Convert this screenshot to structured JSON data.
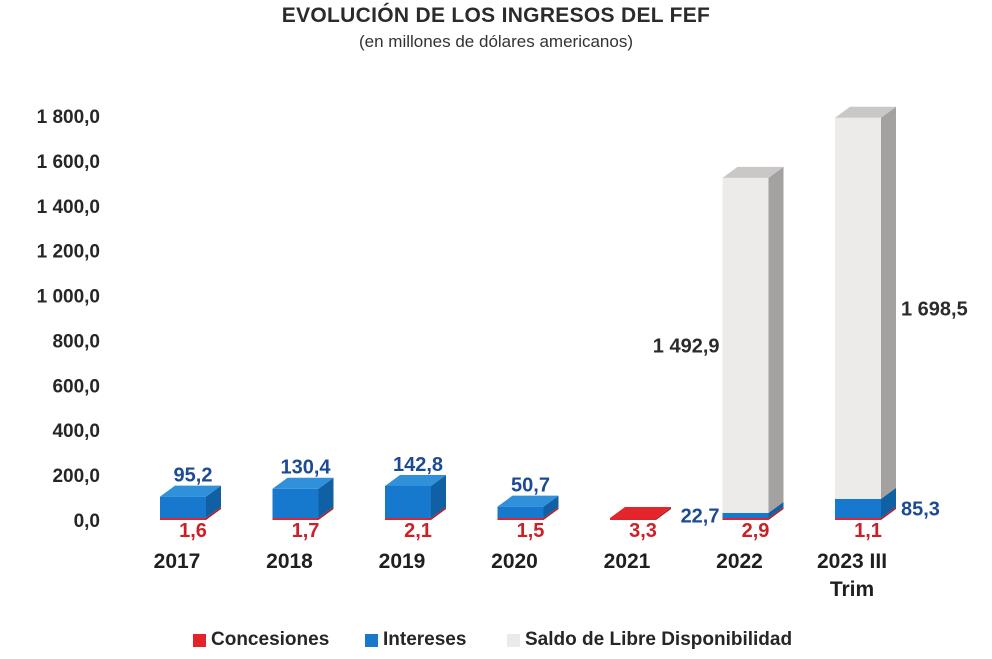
{
  "title": "EVOLUCIÓN DE LOS INGRESOS DEL FEF",
  "subtitle": "(en millones de dólares americanos)",
  "legend": [
    {
      "label": "Concesiones",
      "color": "#e32329"
    },
    {
      "label": "Intereses",
      "color": "#1878cc"
    },
    {
      "label": "Saldo de Libre Disponibilidad",
      "color": "#eceae7"
    }
  ],
  "chart_data": {
    "type": "bar",
    "style": "3d-stacked-columns",
    "title": "EVOLUCIÓN DE LOS INGRESOS DEL FEF",
    "subtitle": "(en millones de dólares americanos)",
    "unit": "millones de dólares americanos",
    "grid": false,
    "legend_position": "bottom",
    "categories": [
      "2017",
      "2018",
      "2019",
      "2020",
      "2021",
      "2022",
      "2023 III Trim"
    ],
    "category_labels": [
      [
        "2017"
      ],
      [
        "2018"
      ],
      [
        "2019"
      ],
      [
        "2020"
      ],
      [
        "2021"
      ],
      [
        "2022"
      ],
      [
        "2023 III",
        "Trim"
      ]
    ],
    "y_axis": {
      "range": [
        0,
        1800
      ],
      "ticks": [
        {
          "v": 1800,
          "label": "1 800,0"
        },
        {
          "v": 1600,
          "label": "1 600,0"
        },
        {
          "v": 1400,
          "label": "1 400,0"
        },
        {
          "v": 1200,
          "label": "1 200,0"
        },
        {
          "v": 1000,
          "label": "1 000,0"
        },
        {
          "v": 800,
          "label": "800,0"
        },
        {
          "v": 600,
          "label": "600,0"
        },
        {
          "v": 400,
          "label": "400,0"
        },
        {
          "v": 200,
          "label": "200,0"
        },
        {
          "v": 0,
          "label": "0,0"
        }
      ]
    },
    "series": [
      {
        "name": "Concesiones",
        "values": [
          1.6,
          1.7,
          2.1,
          1.5,
          3.3,
          2.9,
          1.1
        ],
        "value_labels": [
          "1,6",
          "1,7",
          "2,1",
          "1,5",
          "3,3",
          "2,9",
          "1,1"
        ],
        "colors": {
          "front": "#df2330",
          "top": "#e2262c",
          "side": "#b01e23"
        },
        "label_color": "#cc2027",
        "label_placement": [
          "below",
          "below",
          "below",
          "below",
          "below",
          "below",
          "below"
        ]
      },
      {
        "name": "Intereses",
        "values": [
          95.2,
          130.4,
          142.8,
          50.7,
          0,
          22.7,
          85.3
        ],
        "value_labels": [
          "95,2",
          "130,4",
          "142,8",
          "50,7",
          "",
          "22,7",
          "85,3"
        ],
        "colors": {
          "front": "#1779cd",
          "top": "#3090da",
          "side": "#1160a3"
        },
        "label_color": "#1c4a94",
        "label_placement": [
          "top",
          "top",
          "top",
          "top",
          "none",
          "left",
          "right"
        ]
      },
      {
        "name": "Saldo de Libre Disponibilidad",
        "values": [
          0,
          0,
          0,
          0,
          0,
          1492.9,
          1698.5
        ],
        "value_labels": [
          "",
          "",
          "",
          "",
          "",
          "1 492,9",
          "1 698,5"
        ],
        "colors": {
          "front": "#ecebe9",
          "top": "#c9c8c6",
          "side": "#a3a2a0"
        },
        "label_color": "#2b2b2b",
        "label_placement": [
          "none",
          "none",
          "none",
          "none",
          "none",
          "left",
          "right"
        ]
      }
    ]
  }
}
